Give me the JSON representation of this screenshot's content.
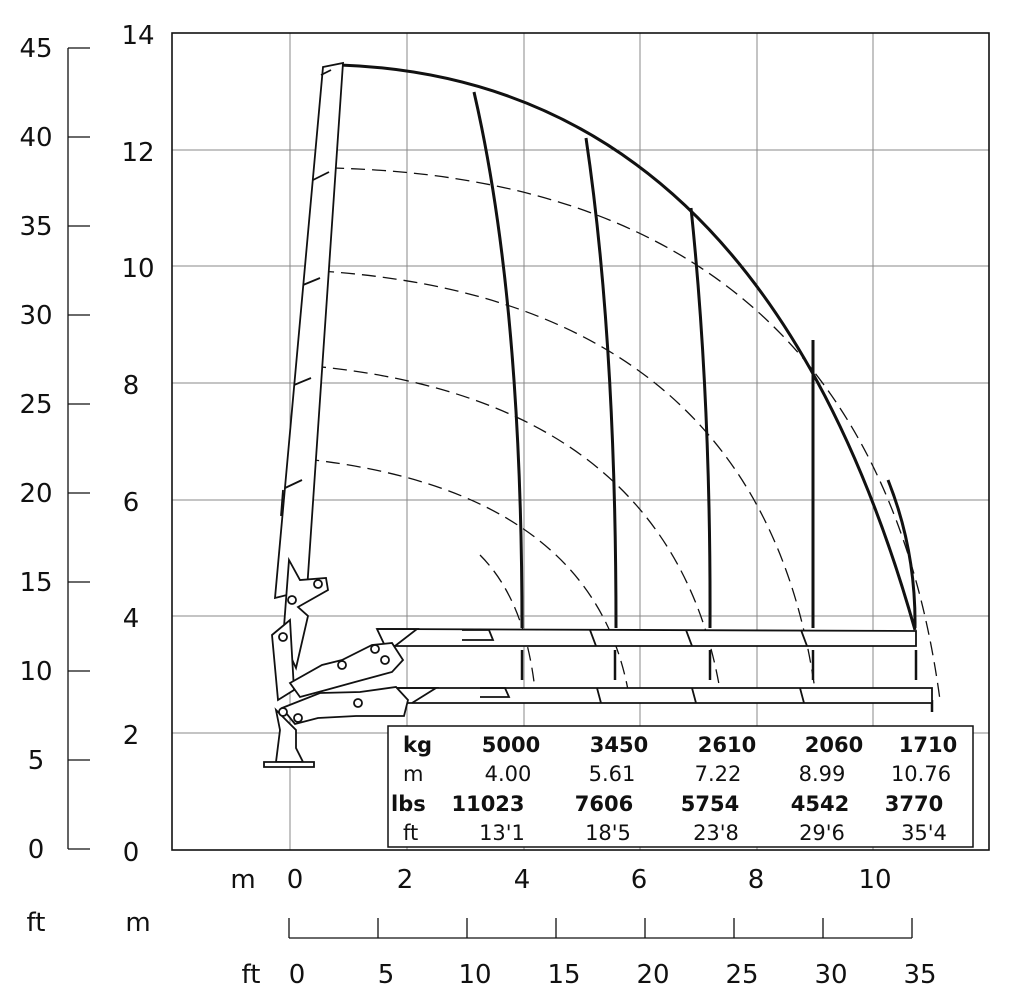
{
  "diagram": {
    "left_axis_ft": {
      "ticks": [
        "0",
        "5",
        "10",
        "15",
        "20",
        "25",
        "30",
        "35",
        "40",
        "45"
      ]
    },
    "left_axis_m": {
      "ticks": [
        "0",
        "2",
        "4",
        "6",
        "8",
        "10",
        "12",
        "14"
      ]
    },
    "bottom_axis_m": {
      "unit": "m",
      "ticks": [
        "0",
        "2",
        "4",
        "6",
        "8",
        "10"
      ]
    },
    "bottom_ruler": {
      "row_label_ft": "ft",
      "row_label_m": "m",
      "unit": "ft",
      "ticks": [
        "0",
        "5",
        "10",
        "15",
        "20",
        "25",
        "30",
        "35"
      ]
    },
    "load_table": {
      "rows": [
        {
          "unit": "kg",
          "values": [
            "5000",
            "3450",
            "2610",
            "2060",
            "1710"
          ]
        },
        {
          "unit": "m",
          "values": [
            "4.00",
            "5.61",
            "7.22",
            "8.99",
            "10.76"
          ]
        },
        {
          "unit": "lbs",
          "values": [
            "11023",
            "7606",
            "5754",
            "4542",
            "3770"
          ]
        },
        {
          "unit": "ft",
          "values": [
            "13'1",
            "18'5",
            "23'8",
            "29'6",
            "35'4"
          ]
        }
      ]
    },
    "boom_positions": [
      {
        "reach_m": 4.0,
        "max_height_m": 13.0
      },
      {
        "reach_m": 5.61,
        "max_height_m": 12.2
      },
      {
        "reach_m": 7.22,
        "max_height_m": 11.0
      },
      {
        "reach_m": 8.99,
        "max_height_m": 8.8
      },
      {
        "reach_m": 10.76,
        "max_height_m": 4.0
      }
    ]
  }
}
